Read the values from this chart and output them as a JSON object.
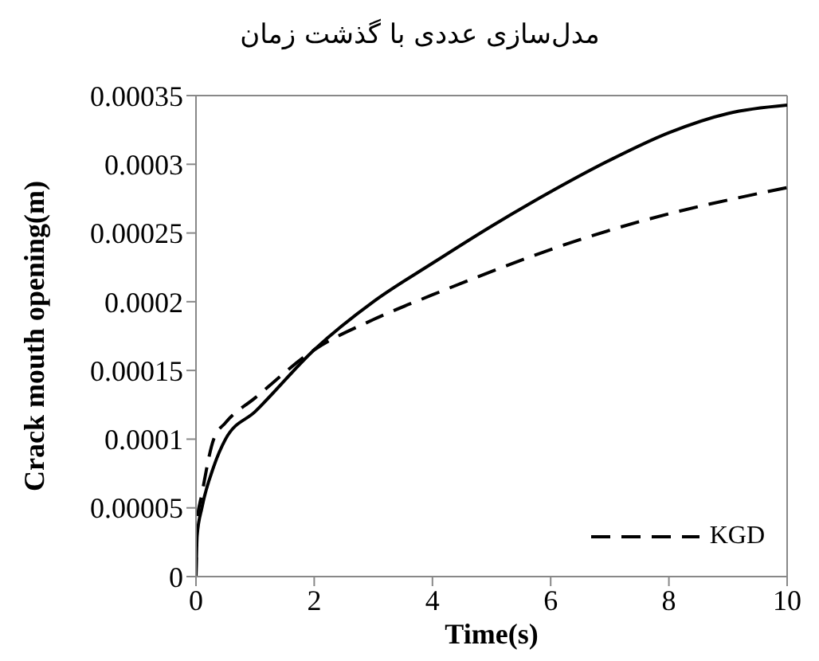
{
  "chart_data": {
    "type": "line",
    "title": "مدل‌سازی عددی با گذشت زمان",
    "xlabel": "Time(s)",
    "ylabel": "Crack mouth opening(m)",
    "xlim": [
      0,
      10
    ],
    "xticks": [
      0,
      2,
      4,
      6,
      8,
      10
    ],
    "ylim": [
      0,
      0.00035
    ],
    "yticks": [
      0,
      {
        "value": 5e-05,
        "label": "0.00005"
      },
      0.0001,
      0.00015,
      0.0002,
      0.00025,
      0.0003,
      0.00035
    ],
    "x": [
      0,
      0.02,
      0.1,
      0.3,
      0.5,
      1,
      2,
      3,
      4,
      5,
      6,
      7,
      8,
      9,
      10
    ],
    "grid": false,
    "legend": "bottom right",
    "marker": "none",
    "series": [
      {
        "color": "#000000",
        "line_style": "solid",
        "values": [
          0,
          3e-05,
          5e-05,
          8e-05,
          0.0001,
          0.00012,
          0.000165,
          0.0002,
          0.000228,
          0.000255,
          0.00028,
          0.000303,
          0.000323,
          0.000337,
          0.000343
        ]
      },
      {
        "name": "KGD",
        "color": "#000000",
        "line_style": "dashed",
        "values": [
          0,
          4e-05,
          6e-05,
          0.0001,
          0.000112,
          0.00013,
          0.000165,
          0.000187,
          0.000205,
          0.000222,
          0.000238,
          0.000252,
          0.000264,
          0.000274,
          0.000283
        ]
      }
    ]
  }
}
